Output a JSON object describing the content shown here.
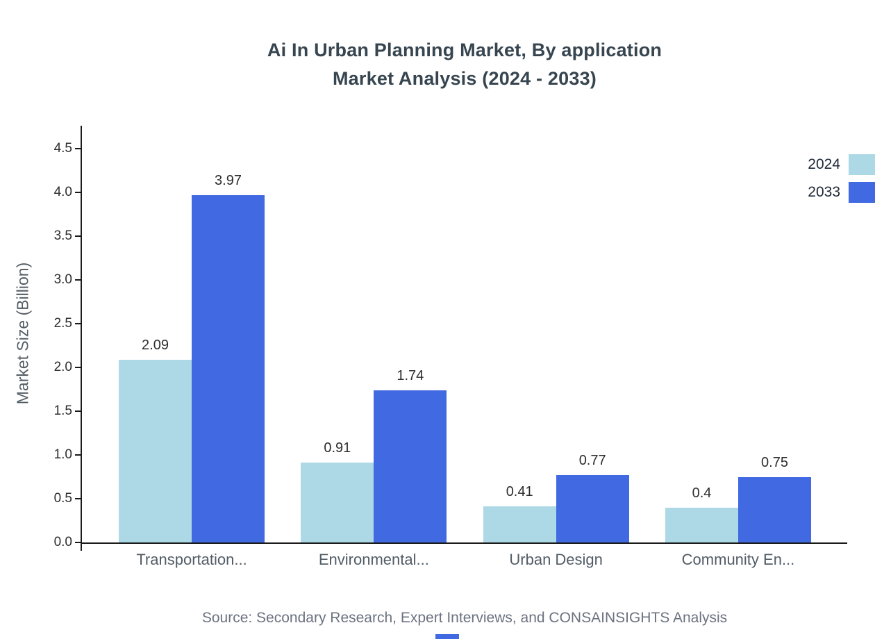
{
  "chart_data": {
    "type": "bar",
    "title": "Ai In Urban Planning Market, By application Market Analysis (2024 - 2033)",
    "title_lines": [
      "Ai In Urban Planning Market, By application",
      "Market Analysis (2024 - 2033)"
    ],
    "xlabel": "",
    "ylabel": "Market Size (Billion)",
    "categories": [
      "Transportation...",
      "Environmental...",
      "Urban Design",
      "Community En..."
    ],
    "series": [
      {
        "name": "2024",
        "color": "#ADD8E6",
        "values": [
          2.09,
          0.91,
          0.41,
          0.4
        ]
      },
      {
        "name": "2033",
        "color": "#4169E1",
        "values": [
          3.97,
          1.74,
          0.77,
          0.75
        ]
      }
    ],
    "value_labels": [
      [
        "2.09",
        "0.91",
        "0.41",
        "0.4"
      ],
      [
        "3.97",
        "1.74",
        "0.77",
        "0.75"
      ]
    ],
    "ylim": [
      0,
      4.5
    ],
    "ytick_step": 0.5,
    "yticks": [
      "0.0",
      "0.5",
      "1.0",
      "1.5",
      "2.0",
      "2.5",
      "3.0",
      "3.5",
      "4.0",
      "4.5"
    ],
    "grid": false,
    "legend_position": "top-right"
  },
  "footer": {
    "source_text": "Source: Secondary Research, Expert Interviews, and CONSAINSIGHTS Analysis"
  }
}
